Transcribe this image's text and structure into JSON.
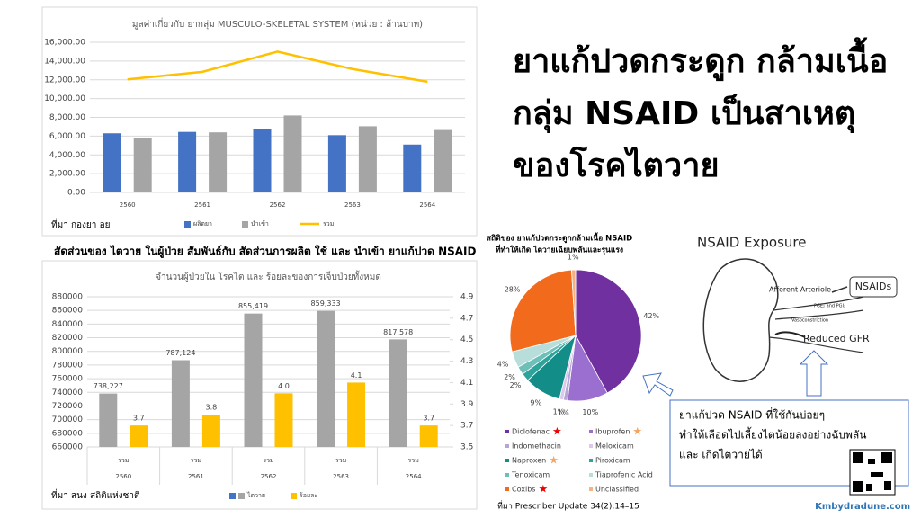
{
  "headline": [
    "ยาแก้ปวดกระดูก กล้ามเนื้อ",
    "กลุ่ม NSAID เป็นสาเหตุ",
    "ของโรคไตวาย"
  ],
  "chart_data": [
    {
      "type": "bar",
      "title": "มูลค่าเกี่ยวกับ ยากลุ่ม MUSCULO-SKELETAL SYSTEM (หน่วย : ล้านบาท)",
      "categories": [
        "2560",
        "2561",
        "2562",
        "2563",
        "2564"
      ],
      "series": [
        {
          "name": "ผลิตยา",
          "color": "#4472c4",
          "values": [
            6300,
            6450,
            6800,
            6100,
            5100
          ]
        },
        {
          "name": "นำเข้า",
          "color": "#a5a5a5",
          "values": [
            5750,
            6400,
            8200,
            7050,
            6650
          ]
        },
        {
          "name": "รวม",
          "color": "#ffc000",
          "type": "line",
          "values": [
            12050,
            12850,
            15000,
            13150,
            11800
          ]
        }
      ],
      "ylim": [
        0,
        16000
      ],
      "yticks": [
        {
          "value": 0,
          "label": "0.00"
        },
        {
          "value": 2000,
          "label": "2,000.00"
        },
        {
          "value": 4000,
          "label": "4,000.00"
        },
        {
          "value": 6000,
          "label": "6,000.00"
        },
        {
          "value": 8000,
          "label": "8,000.00"
        },
        {
          "value": 10000,
          "label": "10,000.00"
        },
        {
          "value": 12000,
          "label": "12,000.00"
        },
        {
          "value": 14000,
          "label": "14,000.00"
        },
        {
          "value": 16000,
          "label": "16,000.00"
        }
      ],
      "grid": true,
      "source": "ที่มา กองยา อย"
    },
    {
      "type": "bar",
      "heading": "สัดส่วนของ ไตวาย ในผู้ป่วย สัมพันธ์กับ สัดส่วนการผลิต ใช้ และ นำเข้า ยาแก้ปวด NSAID",
      "title": "จำนวนผู้ป่วยใน โรคไต และ ร้อยละของการเจ็บป่วยทั้งหมด",
      "categories": [
        "2560",
        "2561",
        "2562",
        "2563",
        "2564"
      ],
      "category_sublabels": [
        "รวม",
        "รวม",
        "รวม",
        "รวม",
        "รวม"
      ],
      "series": [
        {
          "name": "ไตวาย",
          "color": "#a5a5a5",
          "values": [
            738227,
            787124,
            855419,
            859333,
            817578
          ],
          "value_labels": [
            "738,227",
            "787,124",
            "855,419",
            "859,333",
            "817,578"
          ]
        },
        {
          "name": "ร้อยละ",
          "color": "#ffc000",
          "axis": "y2",
          "values": [
            3.7,
            3.8,
            4.0,
            4.1,
            3.7
          ],
          "value_labels": [
            "3.7",
            "3.8",
            "4.0",
            "4.1",
            "3.7"
          ]
        }
      ],
      "ylim": [
        660000,
        880000
      ],
      "yticks": [
        660000,
        680000,
        700000,
        720000,
        740000,
        760000,
        780000,
        800000,
        820000,
        840000,
        860000,
        880000
      ],
      "y2lim": [
        3.5,
        4.9
      ],
      "y2ticks": [
        3.5,
        3.7,
        3.9,
        4.1,
        4.3,
        4.5,
        4.7,
        4.9
      ],
      "grid": true,
      "source": "ที่มา สนง สถิติแห่งชาติ"
    },
    {
      "type": "pie",
      "title": [
        "สถิติของ ยาแก้ปวดกระดูกกล้ามเนื้อ NSAID",
        "ที่ทำให้เกิด ไตวายเฉียบพลันและรุนแรง"
      ],
      "categories": [
        "Diclofenac",
        "Ibuprofen",
        "Indomethacin",
        "Meloxicam",
        "Naproxen",
        "Piroxicam",
        "Tenoxicam",
        "Tiaprofenic Acid",
        "Coxibs",
        "Unclassified"
      ],
      "values": [
        42,
        10,
        1,
        1,
        9,
        2,
        2,
        4,
        28,
        1
      ],
      "value_labels": [
        "42%",
        "10%",
        "1%",
        "1%",
        "9%",
        "2%",
        "2%",
        "4%",
        "28%",
        "1%"
      ],
      "colors": [
        "#7030a0",
        "#9a6fd0",
        "#b4a7d6",
        "#dcc8ec",
        "#138d87",
        "#2ea39b",
        "#6fbfb9",
        "#b7dedb",
        "#f26b1d",
        "#f6b183"
      ],
      "source": "ที่มา Prescriber Update 34(2):14–15"
    }
  ],
  "diagram": {
    "title": "NSAID Exposure",
    "labels": [
      "Afferent Arteriole",
      "NSAIDs",
      "PGE₂ and PGI₂",
      "Vasoconstriction",
      "Reduced GFR"
    ]
  },
  "callout": [
    "ยาแก้ปวด NSAID ที่ใช้กันบ่อยๆ",
    "ทำให้เลือดไปเลี้ยงไตน้อยลงอย่างฉับพลัน",
    "และ เกิดไตวายได้"
  ],
  "footer": "Kmbydradune.com"
}
